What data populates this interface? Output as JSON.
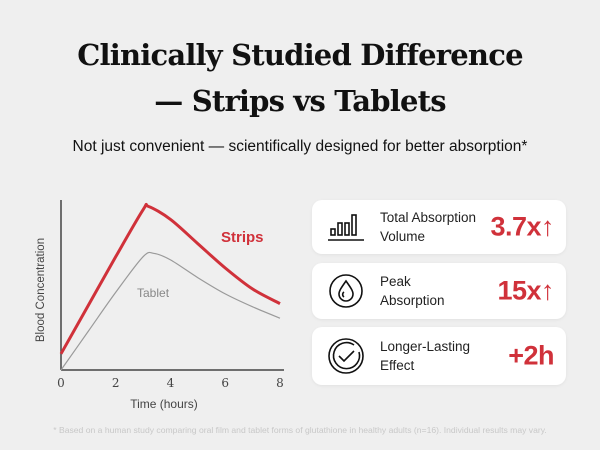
{
  "header": {
    "title_line1": "Clinically Studied Difference",
    "title_line2": "— Strips vs Tablets",
    "subtitle": "Not just convenient — scientifically designed for better absorption*"
  },
  "chart_data": {
    "type": "line",
    "xlabel": "Time (hours)",
    "ylabel": "Blood Concentration",
    "xlim": [
      0,
      8
    ],
    "ylim": [
      0,
      105
    ],
    "xticks": [
      "0",
      "2",
      "4",
      "6",
      "8"
    ],
    "series": [
      {
        "name": "Strips",
        "color": "#d0313a",
        "x": [
          0,
          1,
          2,
          3,
          3.2,
          4,
          5,
          6,
          7,
          8
        ],
        "y": [
          10,
          40,
          70,
          99,
          101,
          93,
          78,
          63,
          50,
          41
        ]
      },
      {
        "name": "Tablet",
        "color": "#9a9a9a",
        "x": [
          0,
          1,
          2,
          3,
          3.4,
          4,
          5,
          6,
          7,
          8
        ],
        "y": [
          0,
          24,
          48,
          70,
          72,
          68,
          57,
          47,
          39,
          32
        ]
      }
    ]
  },
  "cards": [
    {
      "icon": "bar-chart-icon",
      "label": "Total Absorption Volume",
      "value": "3.7x↑"
    },
    {
      "icon": "water-drop-icon",
      "label": "Peak Absorption",
      "value": "15x↑"
    },
    {
      "icon": "check-circle-icon",
      "label": "Longer-Lasting Effect",
      "value": "+2h"
    }
  ],
  "footnote": "* Based on a human study comparing oral film and tablet forms of glutathione in healthy adults (n=16). Individual results may vary."
}
